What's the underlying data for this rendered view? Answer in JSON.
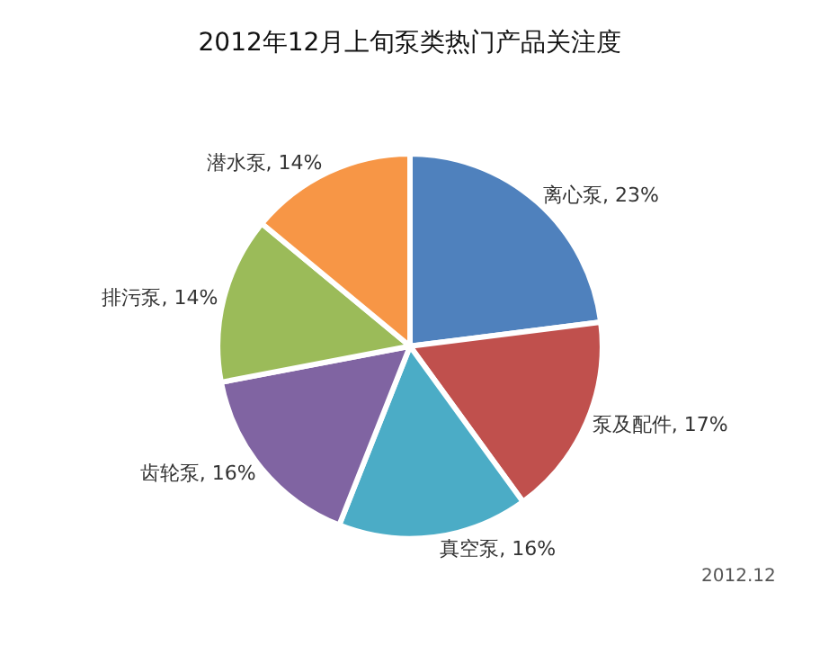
{
  "chart_data": {
    "type": "pie",
    "title": "2012年12月上旬泵类热门产品关注度",
    "categories": [
      "离心泵",
      "泵及配件",
      "真空泵",
      "齿轮泵",
      "排污泵",
      "潜水泵"
    ],
    "values": [
      23,
      17,
      16,
      16,
      14,
      14
    ],
    "colors": [
      "#4f81bd",
      "#c0504d",
      "#4bacc6",
      "#8064a2",
      "#9bbb59",
      "#f79646"
    ],
    "value_labels": [
      "23%",
      "17%",
      "16%",
      "16%",
      "14%",
      "14%"
    ],
    "annotations": [
      "2012.12"
    ]
  }
}
